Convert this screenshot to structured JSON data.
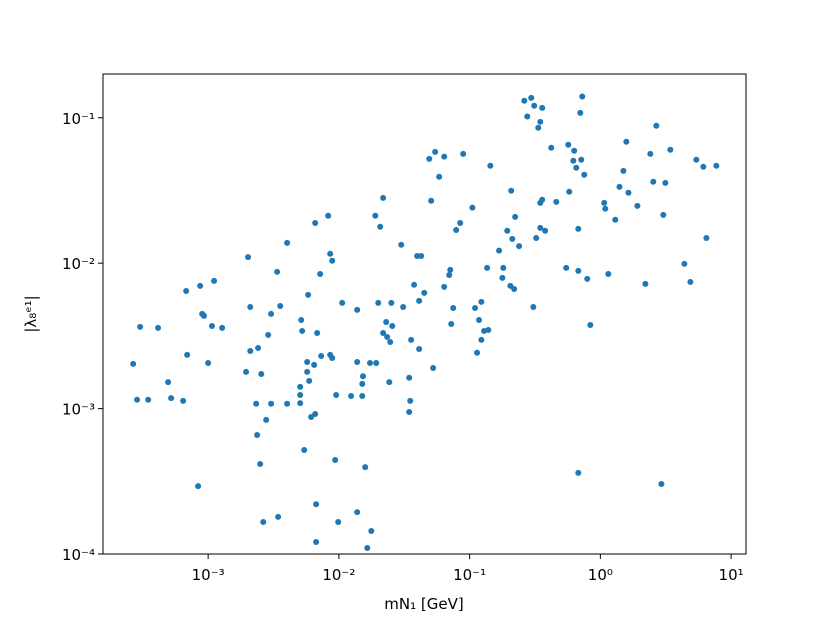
{
  "chart_data": {
    "type": "scatter",
    "x_label": "mN₁ [GeV]",
    "y_label": "|λ₈ᵉ¹|",
    "xscale": "log",
    "yscale": "log",
    "color": "#1f77b4",
    "xlim": [
      0.000157,
      13.0
    ],
    "ylim": [
      0.0001,
      0.2
    ],
    "xticks": [
      {
        "value": 0.001,
        "label": "10⁻³"
      },
      {
        "value": 0.01,
        "label": "10⁻²"
      },
      {
        "value": 0.1,
        "label": "10⁻¹"
      },
      {
        "value": 1,
        "label": "10⁰"
      },
      {
        "value": 10,
        "label": "10¹"
      }
    ],
    "yticks": [
      {
        "value": 0.0001,
        "label": "10⁻⁴"
      },
      {
        "value": 0.001,
        "label": "10⁻³"
      },
      {
        "value": 0.01,
        "label": "10⁻²"
      },
      {
        "value": 0.1,
        "label": "10⁻¹"
      }
    ],
    "x": [
      0.000267,
      0.000286,
      0.000302,
      0.000348,
      0.000414,
      0.000494,
      0.000521,
      0.000644,
      0.000679,
      0.000691,
      0.000838,
      0.000869,
      0.0009,
      0.00093,
      0.001,
      0.00107,
      0.00111,
      0.00128,
      0.00195,
      0.00202,
      0.0021,
      0.0021,
      0.00233,
      0.00237,
      0.00241,
      0.0025,
      0.00255,
      0.00264,
      0.00278,
      0.00288,
      0.00303,
      0.00303,
      0.00337,
      0.00343,
      0.00356,
      0.00402,
      0.00402,
      0.00506,
      0.00506,
      0.00506,
      0.00515,
      0.00524,
      0.00543,
      0.00572,
      0.00572,
      0.00582,
      0.00593,
      0.00614,
      0.00647,
      0.00659,
      0.00659,
      0.0067,
      0.0067,
      0.00682,
      0.00719,
      0.00732,
      0.00828,
      0.00858,
      0.00858,
      0.00889,
      0.00889,
      0.00937,
      0.00953,
      0.00988,
      0.0106,
      0.0124,
      0.0138,
      0.0138,
      0.0138,
      0.0151,
      0.0151,
      0.0153,
      0.0159,
      0.0165,
      0.0173,
      0.0177,
      0.019,
      0.0193,
      0.02,
      0.0207,
      0.0218,
      0.0218,
      0.023,
      0.0234,
      0.0243,
      0.0247,
      0.0252,
      0.0256,
      0.03,
      0.031,
      0.0345,
      0.0345,
      0.0351,
      0.0357,
      0.0376,
      0.0397,
      0.0411,
      0.0426,
      0.0411,
      0.045,
      0.0491,
      0.0508,
      0.0526,
      0.0545,
      0.0585,
      0.0639,
      0.0639,
      0.0698,
      0.0711,
      0.0723,
      0.0749,
      0.0789,
      0.0847,
      0.0893,
      0.105,
      0.11,
      0.114,
      0.118,
      0.123,
      0.123,
      0.129,
      0.136,
      0.139,
      0.144,
      0.168,
      0.178,
      0.181,
      0.194,
      0.205,
      0.208,
      0.212,
      0.219,
      0.223,
      0.239,
      0.262,
      0.276,
      0.296,
      0.307,
      0.312,
      0.323,
      0.335,
      0.347,
      0.347,
      0.347,
      0.359,
      0.359,
      0.378,
      0.421,
      0.46,
      0.548,
      0.568,
      0.578,
      0.621,
      0.631,
      0.654,
      0.678,
      0.678,
      0.678,
      0.702,
      0.714,
      0.727,
      0.753,
      0.794,
      0.838,
      1.07,
      1.09,
      1.15,
      1.3,
      1.4,
      1.5,
      1.58,
      1.64,
      1.92,
      2.21,
      2.41,
      2.54,
      2.68,
      2.93,
      3.03,
      3.14,
      3.43,
      4.39,
      4.88,
      5.42,
      6.13,
      6.47,
      7.71
    ],
    "series": [
      {
        "values": [
          0.00203,
          0.00115,
          0.00365,
          0.00115,
          0.00359,
          0.00152,
          0.00118,
          0.00113,
          0.00644,
          0.00234,
          0.000293,
          0.00698,
          0.00448,
          0.00434,
          0.00206,
          0.0037,
          0.00755,
          0.00359,
          0.00179,
          0.011,
          0.00249,
          0.005,
          0.00108,
          0.000658,
          0.00261,
          0.000416,
          0.00173,
          0.000166,
          0.000836,
          0.00321,
          0.00108,
          0.00448,
          0.00871,
          0.00018,
          0.00508,
          0.0138,
          0.00108,
          0.00141,
          0.00124,
          0.00109,
          0.00407,
          0.00342,
          0.000519,
          0.00209,
          0.00179,
          0.00605,
          0.00155,
          0.000875,
          0.002,
          0.000918,
          0.0189,
          0.00022,
          0.000121,
          0.00331,
          0.00843,
          0.0023,
          0.0212,
          0.00234,
          0.0116,
          0.00223,
          0.0104,
          0.000443,
          0.00124,
          0.000166,
          0.00533,
          0.00122,
          0.00209,
          0.00477,
          0.000194,
          0.00122,
          0.00148,
          0.00167,
          0.000396,
          0.00011,
          0.00206,
          0.000144,
          0.0212,
          0.00206,
          0.00533,
          0.0178,
          0.0281,
          0.00331,
          0.00394,
          0.00311,
          0.00152,
          0.00287,
          0.00533,
          0.0037,
          0.0134,
          0.005,
          0.00163,
          0.000948,
          0.00113,
          0.00297,
          0.0071,
          0.0112,
          0.00257,
          0.0112,
          0.00551,
          0.00625,
          0.0522,
          0.0269,
          0.0019,
          0.0583,
          0.0393,
          0.054,
          0.00687,
          0.0083,
          0.00899,
          0.00382,
          0.00492,
          0.0169,
          0.0189,
          0.0565,
          0.0241,
          0.00492,
          0.00242,
          0.00407,
          0.00542,
          0.00297,
          0.00342,
          0.00929,
          0.00347,
          0.0468,
          0.0122,
          0.00793,
          0.00929,
          0.0167,
          0.00698,
          0.0315,
          0.0147,
          0.00665,
          0.0208,
          0.0131,
          0.131,
          0.102,
          0.137,
          0.005,
          0.121,
          0.0149,
          0.0854,
          0.0175,
          0.026,
          0.0938,
          0.117,
          0.0273,
          0.0167,
          0.0622,
          0.0264,
          0.00929,
          0.0652,
          0.031,
          0.0506,
          0.0593,
          0.0453,
          0.000361,
          0.0172,
          0.00885,
          0.108,
          0.0514,
          0.14,
          0.0406,
          0.0078,
          0.00376,
          0.026,
          0.0237,
          0.00843,
          0.0199,
          0.0335,
          0.0431,
          0.0684,
          0.0305,
          0.0248,
          0.00721,
          0.0565,
          0.0363,
          0.0881,
          0.000303,
          0.0215,
          0.0357,
          0.0603,
          0.00989,
          0.00743,
          0.0514,
          0.046,
          0.0149,
          0.0468
        ]
      }
    ]
  }
}
